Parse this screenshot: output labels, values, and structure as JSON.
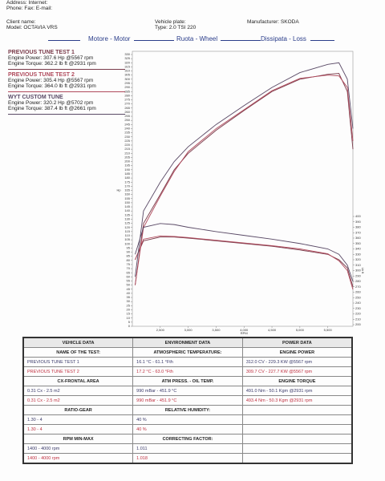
{
  "header": {
    "address": "Address: Internet:",
    "phone": "Phone: Fax: E-mail:",
    "client": "Client name:",
    "model": "Model: OCTAVIA VRS",
    "plate": "Vehicle plate:",
    "vtype": "Type: 2.0 TSI 220",
    "manufacturer": "Manufacturer: SKODA"
  },
  "tabs": [
    "Motore - Motor",
    "Ruota - Wheel",
    "Dissipata - Loss"
  ],
  "chart_data": {
    "type": "line",
    "x_label": "RPM",
    "y_label": "Hp",
    "y2_label": "Lb ft",
    "x": [
      2050,
      2200,
      2500,
      2750,
      3000,
      3500,
      4000,
      4500,
      5000,
      5500,
      5700,
      5850,
      5950
    ],
    "xlim": [
      2000,
      5950
    ],
    "xticks": [
      {
        "value": 2500,
        "label": "2,500"
      },
      {
        "value": 3000,
        "label": "3,000"
      },
      {
        "value": 3500,
        "label": "3,500"
      },
      {
        "value": 4000,
        "label": "4,000"
      },
      {
        "value": 4500,
        "label": "4,500"
      },
      {
        "value": 5000,
        "label": "5,000"
      },
      {
        "value": 5500,
        "label": "5,500"
      }
    ],
    "ylim": [
      0,
      330
    ],
    "yticks": [
      0,
      5,
      10,
      15,
      20,
      25,
      30,
      35,
      40,
      45,
      50,
      55,
      60,
      65,
      70,
      75,
      80,
      85,
      90,
      95,
      100,
      105,
      110,
      115,
      120,
      125,
      130,
      135,
      140,
      145,
      150,
      155,
      160,
      165,
      170,
      175,
      180,
      185,
      190,
      195,
      200,
      205,
      210,
      215,
      220,
      225,
      230,
      235,
      240,
      245,
      250,
      255,
      260,
      265,
      270,
      275,
      280,
      285,
      290,
      295,
      300,
      305,
      310,
      315,
      320,
      325,
      330
    ],
    "y2lim": [
      200,
      400
    ],
    "y2ticks": [
      200,
      210,
      220,
      230,
      240,
      250,
      260,
      270,
      280,
      290,
      300,
      310,
      320,
      330,
      340,
      350,
      360,
      370,
      380,
      390,
      400
    ],
    "series": [
      {
        "name": "PREVIOUS TUNE TEST 1",
        "color": "#7a3b4a",
        "summary": [
          "Engine Power: 307.6 Hp @5567 rpm",
          "Engine Torque: 362.2 lb ft @2931 rpm"
        ],
        "values": [
          50,
          125,
          160,
          190,
          210,
          238,
          262,
          285,
          300,
          306,
          307,
          285,
          215
        ],
        "torque": [
          320,
          355,
          362,
          362,
          360,
          355,
          350,
          345,
          338,
          330,
          320,
          305,
          270
        ]
      },
      {
        "name": "PREVIOUS TUNE TEST 2",
        "color": "#b04a5c",
        "summary": [
          "Engine Power: 305.4 Hp @5567 rpm",
          "Engine Torque: 364.0 lb ft @2931 rpm"
        ],
        "values": [
          50,
          120,
          158,
          188,
          212,
          240,
          263,
          286,
          301,
          305,
          304,
          290,
          225
        ],
        "torque": [
          320,
          358,
          364,
          363,
          361,
          356,
          351,
          346,
          340,
          331,
          318,
          300,
          265
        ]
      },
      {
        "name": "WYT CUSTOM TUNE",
        "color": "#5a4a66",
        "summary": [
          "Engine Power: 320.2 Hp @5702 rpm",
          "Engine Torque: 387.4 lb ft @2661 rpm"
        ],
        "values": [
          60,
          140,
          175,
          200,
          218,
          245,
          268,
          290,
          308,
          318,
          320,
          300,
          240
        ],
        "torque": [
          330,
          380,
          387,
          385,
          380,
          372,
          365,
          358,
          350,
          340,
          330,
          310,
          280
        ]
      }
    ]
  },
  "table": {
    "columns": [
      "VEHICLE DATA",
      "ENVIRONMENT DATA",
      "POWER DATA"
    ],
    "sections": [
      {
        "headings": [
          "NAME OF THE TEST:",
          "ATMOSPHERIC TEMPERATURE:",
          "ENGINE POWER"
        ],
        "rows": [
          [
            "PREVIOUS TUNE TEST 1",
            "16.1 °C - 61.1 °Fth",
            "312.0 CV - 229.3 KW @5567 rpm"
          ],
          [
            "PREVIOUS TUNE TEST 2",
            "17.2 °C - 63.0 °Fth",
            "309.7 CV - 227.7 KW @5567 rpm"
          ]
        ]
      },
      {
        "headings": [
          "CX-FRONTAL AREA",
          "ATM PRESS. - OIL TEMP.",
          "ENGINE TORQUE"
        ],
        "rows": [
          [
            "0.31 Cx - 2.5 m2",
            "990 mBar - 451.9 °C",
            "491.0 Nm - 50.1 Kgm @2931 rpm"
          ],
          [
            "0.31 Cx - 2.5 m2",
            "990 mBar - 451.9 °C",
            "493.4 Nm - 50.3 Kgm @2931 rpm"
          ]
        ]
      },
      {
        "headings": [
          "RATIO-GEAR",
          "RELATIVE HUMIDITY:",
          null
        ],
        "rows": [
          [
            "1.30 - 4",
            "40 %",
            null
          ],
          [
            "1.30 - 4",
            "40 %",
            null
          ]
        ]
      },
      {
        "headings": [
          "RPM MIN-MAX",
          "CORRECTING FACTOR:",
          null
        ],
        "rows": [
          [
            "1400 - 4000 rpm",
            "1.011",
            null
          ],
          [
            "1400 - 4000 rpm",
            "1.018",
            null
          ]
        ]
      }
    ]
  }
}
